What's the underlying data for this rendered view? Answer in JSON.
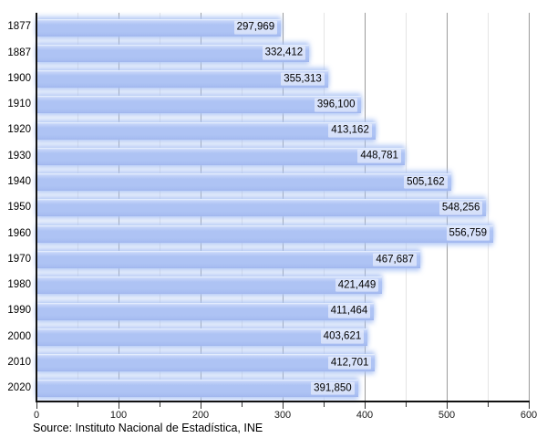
{
  "chart_data": {
    "type": "bar",
    "orientation": "horizontal",
    "title": "",
    "xlabel": "",
    "ylabel": "",
    "categories": [
      "1877",
      "1887",
      "1900",
      "1910",
      "1920",
      "1930",
      "1940",
      "1950",
      "1960",
      "1970",
      "1980",
      "1990",
      "2000",
      "2010",
      "2020"
    ],
    "values": [
      297969,
      332412,
      355313,
      396100,
      413162,
      448781,
      505162,
      548256,
      556759,
      467687,
      421449,
      411464,
      403621,
      412701,
      391850
    ],
    "value_labels": [
      "297,969",
      "332,412",
      "355,313",
      "396,100",
      "413,162",
      "448,781",
      "505,162",
      "548,256",
      "556,759",
      "467,687",
      "421,449",
      "411,464",
      "403,621",
      "412,701",
      "391,850"
    ],
    "xlim": [
      0,
      600000
    ],
    "x_ticks": [
      0,
      100000,
      200000,
      300000,
      400000,
      500000,
      600000
    ],
    "x_tick_labels": [
      "0",
      "100",
      "200",
      "300",
      "400",
      "500",
      "600"
    ],
    "x_minor_tick_interval": 50000,
    "grid": "vertical, major and minor, behind bars",
    "legend": "none",
    "source": "Source: Instituto Nacional de Estadística, INE",
    "colors": {
      "bar": "#aec3f4",
      "bar_top": "#eef4fe",
      "bar_bottom": "#9fb5ed",
      "glow": "rgba(173,196,245,0.85)",
      "grid_major": "#9b9b9b",
      "grid_minor": "#e4e4e4",
      "axis": "#111111",
      "label_bg": "rgba(255,255,255,0.5)",
      "text": "#000000"
    }
  }
}
